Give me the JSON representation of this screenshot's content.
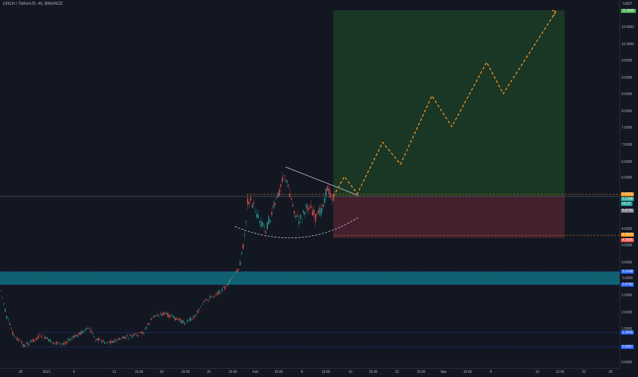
{
  "header": {
    "symbol": "1INCH / TetherUS, 4h, BINANCE"
  },
  "price_axis": {
    "unit": "USDT",
    "labels": [
      "10.5000",
      "10.0000",
      "9.5000",
      "9.0000",
      "8.5000",
      "8.0000",
      "7.5000",
      "7.0000",
      "6.5000",
      "6.0000",
      "4.5000",
      "4.0000",
      "3.5000",
      "2.5000",
      "2.0000",
      "1.5000",
      "0.5000"
    ],
    "tags": [
      {
        "text": "11.0065",
        "color": "#4caf50"
      },
      {
        "text": "5.5401",
        "color": "#f7931a"
      },
      {
        "text": "5.1348",
        "color": "#26a69a"
      },
      {
        "text": "02:37",
        "color": "#26a69a"
      },
      {
        "text": "5.4755",
        "color": "#787b86"
      },
      {
        "text": "4.2875",
        "color": "#f7931a"
      },
      {
        "text": "4.3095",
        "color": "#ef5350"
      },
      {
        "text": "3.2168",
        "color": "#2962ff"
      },
      {
        "text": "3.0000",
        "color": "#131722"
      },
      {
        "text": "2.8760",
        "color": "#2962ff"
      },
      {
        "text": "1.3415",
        "color": "#2962ff"
      },
      {
        "text": "0.9657",
        "color": "#2962ff"
      }
    ]
  },
  "time_axis": {
    "labels": [
      "28",
      "2021",
      "5",
      "11",
      "15:00",
      "18",
      "15:00",
      "25",
      "15:00",
      "Feb",
      "15:00",
      "8",
      "15:00",
      "15",
      "15:00",
      "22",
      "15:00",
      "Mar",
      "15:00",
      "8",
      "15",
      "12:00",
      "22",
      "26"
    ]
  },
  "colors": {
    "background": "#131722",
    "up": "#26a69a",
    "down": "#ef5350",
    "profit_zone": "#1e3a2a",
    "loss_zone": "#4a2130",
    "support_zone": "#0f6f7f",
    "projection": "#f7931a"
  }
}
